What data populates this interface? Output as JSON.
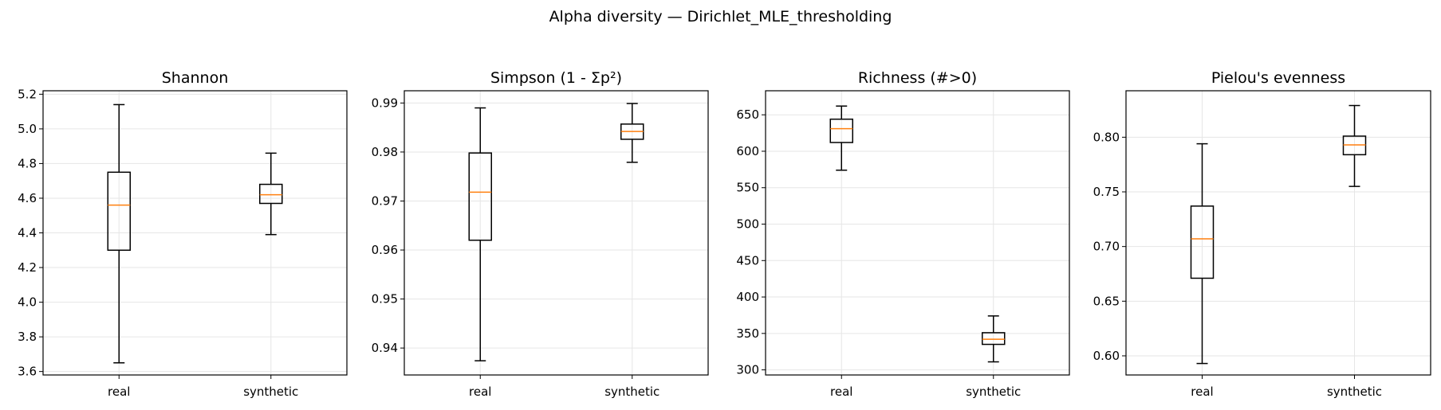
{
  "suptitle": "Alpha diversity — Dirichlet_MLE_thresholding",
  "colors": {
    "box": "#000000",
    "median": "#ff7f0e",
    "grid": "#e6e6e6"
  },
  "chart_data": [
    {
      "type": "boxplot",
      "title": "Shannon",
      "categories": [
        "real",
        "synthetic"
      ],
      "ylim": [
        3.58,
        5.22
      ],
      "yticks": [
        "3.6",
        "3.8",
        "4.0",
        "4.2",
        "4.4",
        "4.6",
        "4.8",
        "5.0",
        "5.2"
      ],
      "boxes": [
        {
          "label": "real",
          "whislo": 3.65,
          "q1": 4.3,
          "med": 4.56,
          "q3": 4.75,
          "whishi": 5.14
        },
        {
          "label": "synthetic",
          "whislo": 4.39,
          "q1": 4.57,
          "med": 4.62,
          "q3": 4.68,
          "whishi": 4.86
        }
      ],
      "grid": true
    },
    {
      "type": "boxplot",
      "title": "Simpson (1 - Σp²)",
      "categories": [
        "real",
        "synthetic"
      ],
      "ylim": [
        0.9345,
        0.9925
      ],
      "yticks": [
        "0.94",
        "0.95",
        "0.96",
        "0.97",
        "0.98",
        "0.99"
      ],
      "boxes": [
        {
          "label": "real",
          "whislo": 0.9374,
          "q1": 0.962,
          "med": 0.9718,
          "q3": 0.9798,
          "whishi": 0.989
        },
        {
          "label": "synthetic",
          "whislo": 0.9779,
          "q1": 0.9826,
          "med": 0.9842,
          "q3": 0.9857,
          "whishi": 0.9899
        }
      ],
      "grid": true
    },
    {
      "type": "boxplot",
      "title": "Richness (#>0)",
      "categories": [
        "real",
        "synthetic"
      ],
      "ylim": [
        293,
        683
      ],
      "yticks": [
        "300",
        "350",
        "400",
        "450",
        "500",
        "550",
        "600",
        "650"
      ],
      "boxes": [
        {
          "label": "real",
          "whislo": 574,
          "q1": 612,
          "med": 631,
          "q3": 644,
          "whishi": 662
        },
        {
          "label": "synthetic",
          "whislo": 311,
          "q1": 335,
          "med": 342,
          "q3": 351,
          "whishi": 374
        }
      ],
      "grid": true
    },
    {
      "type": "boxplot",
      "title": "Pielou's evenness",
      "categories": [
        "real",
        "synthetic"
      ],
      "ylim": [
        0.5825,
        0.8425
      ],
      "yticks": [
        "0.60",
        "0.65",
        "0.70",
        "0.75",
        "0.80"
      ],
      "boxes": [
        {
          "label": "real",
          "whislo": 0.593,
          "q1": 0.671,
          "med": 0.707,
          "q3": 0.737,
          "whishi": 0.794
        },
        {
          "label": "synthetic",
          "whislo": 0.755,
          "q1": 0.784,
          "med": 0.793,
          "q3": 0.801,
          "whishi": 0.829
        }
      ],
      "grid": true
    }
  ]
}
